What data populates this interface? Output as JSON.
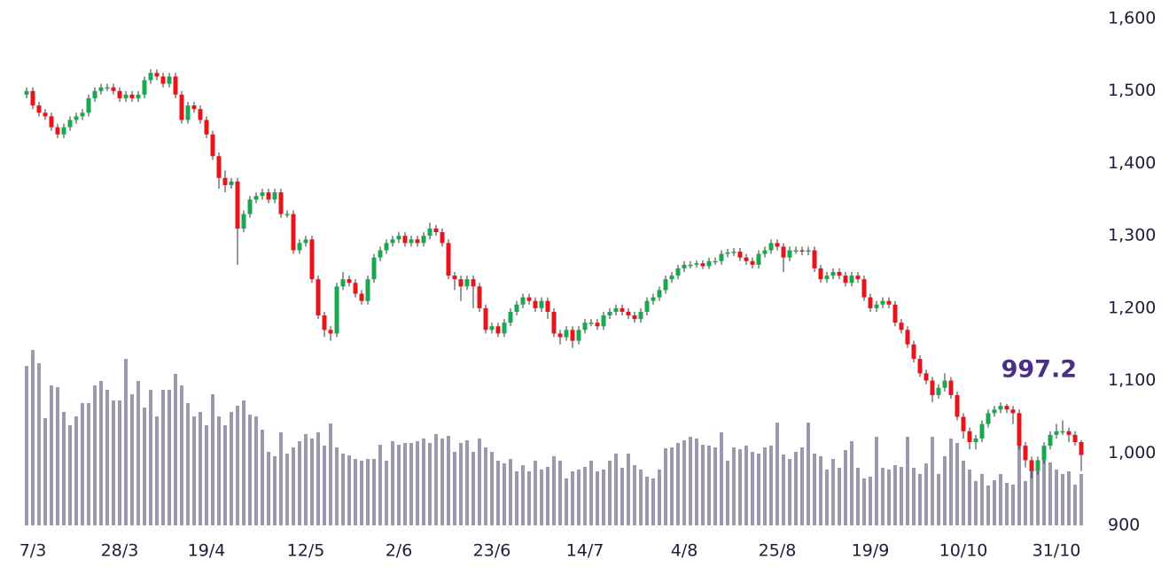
{
  "chart_data": {
    "type": "candlestick",
    "categories": [
      null,
      "7/3",
      null,
      null,
      null,
      null,
      null,
      null,
      null,
      null,
      null,
      null,
      null,
      null,
      null,
      "28/3",
      null,
      null,
      null,
      null,
      null,
      null,
      null,
      null,
      null,
      null,
      null,
      null,
      null,
      "19/4",
      null,
      null,
      null,
      null,
      null,
      null,
      null,
      null,
      null,
      null,
      null,
      null,
      null,
      null,
      null,
      "12/5",
      null,
      null,
      null,
      null,
      null,
      null,
      null,
      null,
      null,
      null,
      null,
      null,
      null,
      null,
      "2/6",
      null,
      null,
      null,
      null,
      null,
      null,
      null,
      null,
      null,
      null,
      null,
      null,
      null,
      null,
      "23/6",
      null,
      null,
      null,
      null,
      null,
      null,
      null,
      null,
      null,
      null,
      null,
      null,
      null,
      null,
      "14/7",
      null,
      null,
      null,
      null,
      null,
      null,
      null,
      null,
      null,
      null,
      null,
      null,
      null,
      null,
      null,
      "4/8",
      null,
      null,
      null,
      null,
      null,
      null,
      null,
      null,
      null,
      null,
      null,
      null,
      null,
      null,
      "25/8",
      null,
      null,
      null,
      null,
      null,
      null,
      null,
      null,
      null,
      null,
      null,
      null,
      null,
      null,
      "19/9",
      null,
      null,
      null,
      null,
      null,
      null,
      null,
      null,
      null,
      null,
      null,
      null,
      null,
      null,
      "10/10",
      null,
      null,
      null,
      null,
      null,
      null,
      null,
      null,
      null,
      null,
      null,
      null,
      null,
      null,
      "31/10",
      null,
      null,
      null,
      null
    ],
    "open": [
      1495,
      1500,
      1480,
      1470,
      1465,
      1450,
      1440,
      1450,
      1460,
      1465,
      1470,
      1490,
      1500,
      1505,
      1505,
      1500,
      1490,
      1495,
      1490,
      1495,
      1515,
      1525,
      1520,
      1510,
      1520,
      1495,
      1460,
      1480,
      1475,
      1460,
      1440,
      1410,
      1380,
      1370,
      1375,
      1310,
      1330,
      1350,
      1355,
      1360,
      1350,
      1360,
      1330,
      1330,
      1280,
      1290,
      1295,
      1240,
      1190,
      1170,
      1165,
      1230,
      1240,
      1235,
      1220,
      1210,
      1240,
      1270,
      1280,
      1290,
      1295,
      1300,
      1290,
      1295,
      1290,
      1300,
      1310,
      1305,
      1290,
      1245,
      1240,
      1230,
      1240,
      1230,
      1200,
      1170,
      1175,
      1165,
      1180,
      1195,
      1205,
      1215,
      1210,
      1200,
      1210,
      1195,
      1165,
      1160,
      1170,
      1155,
      1170,
      1180,
      1180,
      1175,
      1190,
      1195,
      1200,
      1195,
      1190,
      1185,
      1195,
      1210,
      1215,
      1225,
      1240,
      1245,
      1255,
      1260,
      1260,
      1262,
      1258,
      1265,
      1265,
      1275,
      1277,
      1278,
      1270,
      1265,
      1260,
      1275,
      1280,
      1290,
      1285,
      1270,
      1280,
      1280,
      1278,
      1280,
      1255,
      1240,
      1245,
      1250,
      1245,
      1235,
      1245,
      1240,
      1215,
      1200,
      1205,
      1210,
      1205,
      1180,
      1170,
      1150,
      1130,
      1110,
      1100,
      1080,
      1090,
      1100,
      1080,
      1050,
      1030,
      1015,
      1020,
      1040,
      1055,
      1060,
      1065,
      1060,
      1055,
      1010,
      990,
      975,
      990,
      1010,
      1025,
      1030,
      1030,
      1025,
      1015
    ],
    "high": [
      1505,
      1505,
      1485,
      1475,
      1470,
      1455,
      1455,
      1465,
      1470,
      1475,
      1495,
      1505,
      1510,
      1510,
      1510,
      1505,
      1500,
      1500,
      1500,
      1520,
      1530,
      1530,
      1525,
      1525,
      1525,
      1500,
      1485,
      1485,
      1480,
      1465,
      1445,
      1415,
      1390,
      1380,
      1380,
      1335,
      1355,
      1360,
      1365,
      1365,
      1365,
      1365,
      1335,
      1335,
      1295,
      1300,
      1300,
      1245,
      1195,
      1175,
      1235,
      1250,
      1245,
      1240,
      1225,
      1245,
      1275,
      1285,
      1295,
      1300,
      1305,
      1305,
      1300,
      1300,
      1305,
      1318,
      1315,
      1310,
      1295,
      1250,
      1245,
      1245,
      1245,
      1235,
      1205,
      1180,
      1180,
      1185,
      1200,
      1210,
      1220,
      1220,
      1215,
      1215,
      1215,
      1200,
      1170,
      1175,
      1175,
      1175,
      1185,
      1185,
      1185,
      1195,
      1200,
      1205,
      1205,
      1200,
      1195,
      1200,
      1215,
      1220,
      1230,
      1245,
      1250,
      1260,
      1265,
      1265,
      1266,
      1266,
      1270,
      1270,
      1280,
      1282,
      1283,
      1283,
      1275,
      1270,
      1280,
      1285,
      1295,
      1295,
      1290,
      1285,
      1285,
      1285,
      1285,
      1285,
      1260,
      1250,
      1255,
      1255,
      1250,
      1250,
      1250,
      1245,
      1220,
      1210,
      1215,
      1215,
      1210,
      1185,
      1175,
      1155,
      1135,
      1115,
      1105,
      1095,
      1110,
      1105,
      1085,
      1055,
      1035,
      1025,
      1045,
      1060,
      1065,
      1070,
      1068,
      1065,
      1060,
      1015,
      995,
      995,
      1015,
      1030,
      1040,
      1045,
      1035,
      1030,
      1018
    ],
    "low": [
      1490,
      1475,
      1465,
      1460,
      1445,
      1435,
      1435,
      1445,
      1455,
      1460,
      1465,
      1485,
      1495,
      1500,
      1495,
      1485,
      1485,
      1485,
      1485,
      1490,
      1510,
      1515,
      1505,
      1505,
      1490,
      1455,
      1455,
      1470,
      1455,
      1435,
      1405,
      1365,
      1360,
      1365,
      1260,
      1305,
      1325,
      1345,
      1350,
      1345,
      1345,
      1325,
      1325,
      1275,
      1275,
      1285,
      1235,
      1185,
      1160,
      1155,
      1160,
      1225,
      1230,
      1215,
      1205,
      1205,
      1235,
      1265,
      1275,
      1285,
      1290,
      1285,
      1285,
      1285,
      1285,
      1295,
      1300,
      1285,
      1240,
      1225,
      1210,
      1225,
      1200,
      1195,
      1165,
      1165,
      1160,
      1160,
      1175,
      1190,
      1200,
      1205,
      1195,
      1195,
      1185,
      1160,
      1150,
      1155,
      1145,
      1150,
      1165,
      1175,
      1170,
      1170,
      1185,
      1190,
      1190,
      1185,
      1180,
      1180,
      1190,
      1205,
      1210,
      1220,
      1235,
      1240,
      1250,
      1255,
      1256,
      1254,
      1254,
      1260,
      1260,
      1270,
      1272,
      1265,
      1260,
      1255,
      1255,
      1270,
      1275,
      1280,
      1250,
      1265,
      1275,
      1273,
      1273,
      1250,
      1235,
      1235,
      1240,
      1240,
      1230,
      1230,
      1235,
      1210,
      1195,
      1195,
      1200,
      1200,
      1175,
      1165,
      1145,
      1125,
      1105,
      1095,
      1070,
      1075,
      1085,
      1075,
      1045,
      1020,
      1005,
      1005,
      1015,
      1035,
      1050,
      1055,
      1055,
      1040,
      1005,
      980,
      965,
      970,
      985,
      1005,
      1020,
      1025,
      1015,
      1010,
      975
    ],
    "close": [
      1500,
      1480,
      1470,
      1465,
      1450,
      1440,
      1450,
      1460,
      1465,
      1470,
      1490,
      1500,
      1505,
      1505,
      1500,
      1490,
      1495,
      1490,
      1495,
      1515,
      1525,
      1520,
      1510,
      1520,
      1495,
      1460,
      1480,
      1475,
      1460,
      1440,
      1410,
      1380,
      1370,
      1375,
      1310,
      1330,
      1350,
      1355,
      1360,
      1350,
      1360,
      1330,
      1330,
      1280,
      1290,
      1295,
      1240,
      1190,
      1170,
      1165,
      1230,
      1240,
      1235,
      1220,
      1210,
      1240,
      1270,
      1280,
      1290,
      1295,
      1300,
      1290,
      1295,
      1290,
      1300,
      1310,
      1305,
      1290,
      1245,
      1240,
      1230,
      1240,
      1230,
      1200,
      1170,
      1175,
      1165,
      1180,
      1195,
      1205,
      1215,
      1210,
      1200,
      1210,
      1195,
      1165,
      1160,
      1170,
      1155,
      1170,
      1180,
      1180,
      1175,
      1190,
      1195,
      1200,
      1195,
      1190,
      1185,
      1195,
      1210,
      1215,
      1225,
      1240,
      1245,
      1255,
      1260,
      1260,
      1262,
      1258,
      1265,
      1265,
      1275,
      1277,
      1278,
      1270,
      1265,
      1260,
      1275,
      1280,
      1290,
      1285,
      1270,
      1280,
      1280,
      1278,
      1280,
      1255,
      1240,
      1245,
      1250,
      1245,
      1235,
      1245,
      1240,
      1215,
      1200,
      1205,
      1210,
      1205,
      1180,
      1170,
      1150,
      1130,
      1110,
      1100,
      1080,
      1090,
      1100,
      1080,
      1050,
      1030,
      1015,
      1020,
      1040,
      1055,
      1060,
      1065,
      1060,
      1055,
      1010,
      990,
      975,
      990,
      1010,
      1025,
      1030,
      1030,
      1025,
      1015,
      997.2
    ],
    "volume": [
      180,
      198,
      183,
      121,
      158,
      156,
      128,
      113,
      123,
      138,
      138,
      158,
      163,
      153,
      141,
      141,
      188,
      148,
      163,
      133,
      153,
      123,
      153,
      153,
      171,
      158,
      138,
      123,
      128,
      113,
      148,
      123,
      113,
      128,
      135,
      141,
      125,
      123,
      108,
      83,
      78,
      105,
      81,
      88,
      95,
      103,
      98,
      105,
      90,
      115,
      88,
      81,
      79,
      75,
      73,
      75,
      75,
      91,
      73,
      95,
      91,
      93,
      93,
      95,
      98,
      93,
      103,
      98,
      101,
      83,
      93,
      96,
      83,
      98,
      88,
      83,
      73,
      70,
      75,
      61,
      68,
      61,
      73,
      63,
      66,
      78,
      73,
      53,
      61,
      63,
      66,
      73,
      61,
      63,
      73,
      81,
      65,
      81,
      68,
      63,
      55,
      53,
      63,
      87,
      88,
      93,
      96,
      100,
      98,
      91,
      90,
      88,
      105,
      73,
      88,
      86,
      90,
      83,
      81,
      88,
      90,
      116,
      80,
      75,
      83,
      88,
      116,
      81,
      78,
      63,
      75,
      65,
      85,
      95,
      65,
      53,
      55,
      100,
      65,
      63,
      68,
      66,
      100,
      65,
      58,
      70,
      100,
      58,
      78,
      98,
      93,
      73,
      63,
      50,
      58,
      45,
      51,
      58,
      48,
      46,
      110,
      50,
      68,
      61,
      78,
      71,
      63,
      58,
      61,
      46,
      58
    ],
    "ylim": [
      900,
      1600
    ],
    "yticks": [
      900,
      {
        "value": 1000,
        "label": "1,000"
      },
      {
        "value": 1100,
        "label": "1,100"
      },
      {
        "value": 1200,
        "label": "1,200"
      },
      {
        "value": 1300,
        "label": "1,300"
      },
      {
        "value": 1400,
        "label": "1,400"
      },
      {
        "value": 1500,
        "label": "1,500"
      },
      {
        "value": 1600,
        "label": "1,600"
      }
    ],
    "up_color": "#1aa84f",
    "down_color": "#e8141b",
    "volume_color": "#9b98b0",
    "label_color": "#4a2f87"
  }
}
